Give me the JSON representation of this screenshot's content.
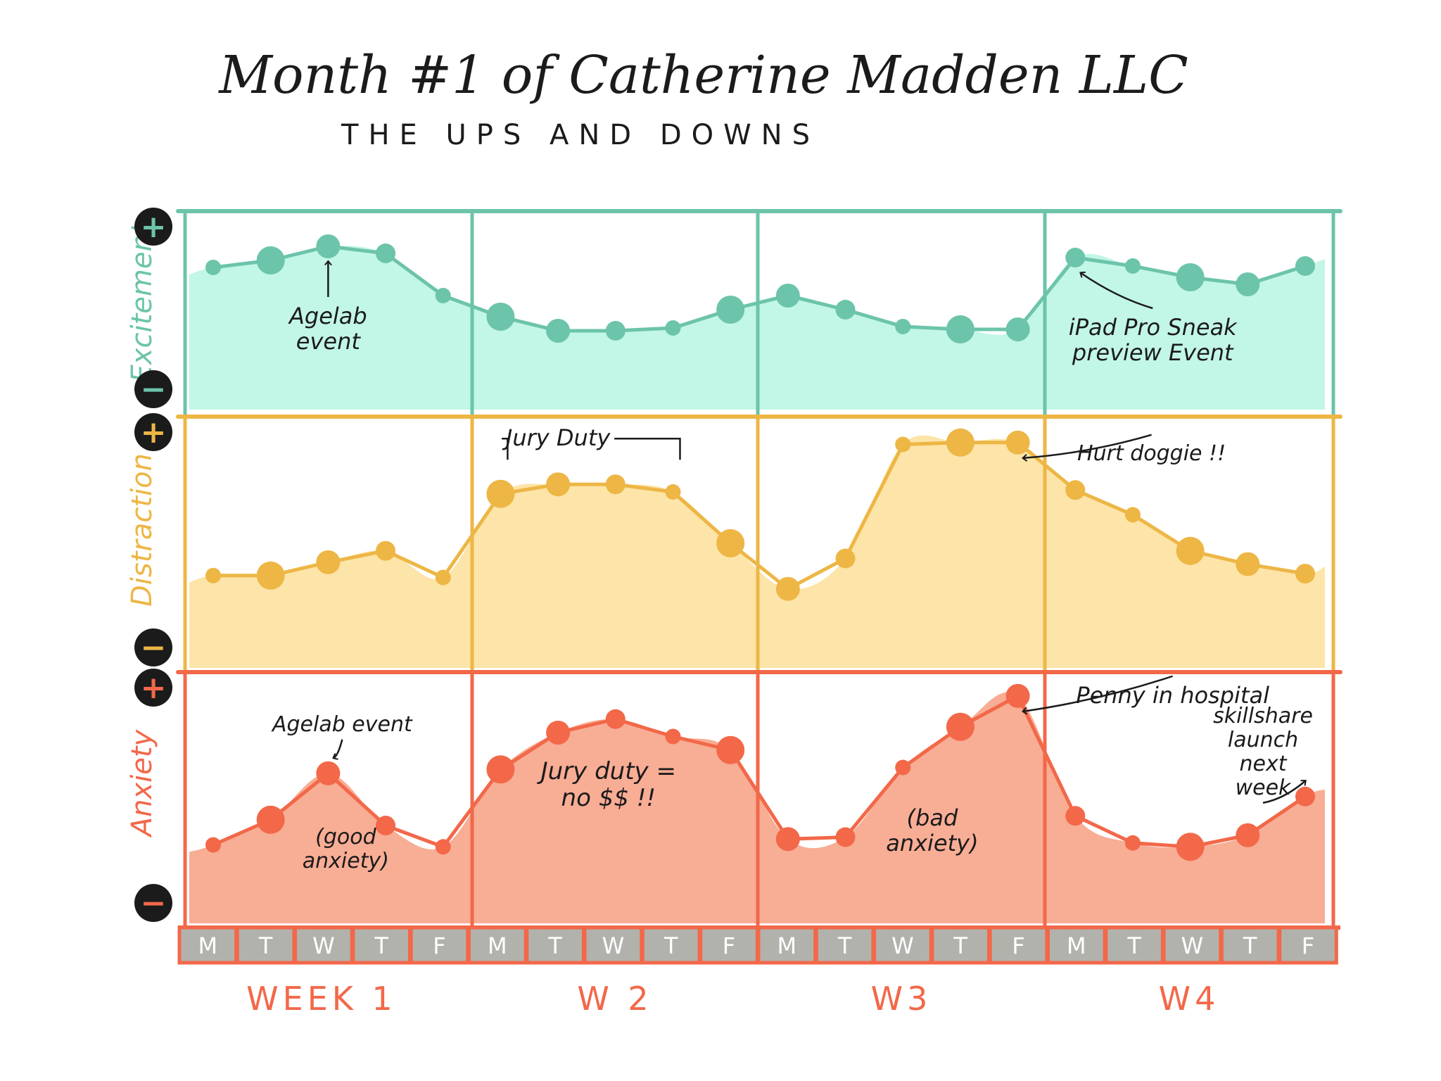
{
  "title": "Month #1 of Catherine Madden LLC",
  "subtitle": "THE UPS AND DOWNS",
  "colors": {
    "excitement": "#6cc4aa",
    "excitement_fill": "#bff5e6",
    "distraction": "#edb645",
    "distraction_fill": "#fde3a3",
    "anxiety": "#f26849",
    "anxiety_fill": "#f8a98f",
    "day_box": "#b2b2ad",
    "marker": "#1b1b1b"
  },
  "plus_symbol": "+",
  "minus_symbol": "−",
  "chart_data": {
    "type": "line",
    "x_days": [
      "M",
      "T",
      "W",
      "T",
      "F",
      "M",
      "T",
      "W",
      "T",
      "F",
      "M",
      "T",
      "W",
      "T",
      "F",
      "M",
      "T",
      "W",
      "T",
      "F"
    ],
    "weeks": [
      "WEEK 1",
      "W 2",
      "W3",
      "W4"
    ],
    "y_scale": "relative level from − (low) to + (high)",
    "ylim": [
      0,
      10
    ],
    "series": [
      {
        "name": "Excitement",
        "values": [
          7.5,
          8,
          9,
          8.5,
          5.5,
          4,
          3,
          3,
          3.2,
          4.5,
          5.5,
          4.5,
          3.3,
          3.1,
          3.1,
          8.2,
          7.6,
          6.8,
          6.3,
          7.6
        ],
        "annotations": [
          {
            "point": 2,
            "text_lines": [
              "Agelab",
              "event"
            ]
          },
          {
            "point": 15,
            "text_lines": [
              "iPad Pro Sneak",
              "preview Event"
            ]
          }
        ]
      },
      {
        "name": "Distraction",
        "values": [
          2.6,
          2.6,
          3.3,
          3.9,
          2.5,
          6.9,
          7.4,
          7.4,
          7,
          4.3,
          1.9,
          3.5,
          9.5,
          9.6,
          9.6,
          7.1,
          5.8,
          3.9,
          3.2,
          2.7
        ],
        "annotations": [
          {
            "point": 6,
            "text_lines": [
              "Jury Duty"
            ]
          },
          {
            "point": 14,
            "text_lines": [
              "Hurt doggie !!"
            ]
          }
        ]
      },
      {
        "name": "Anxiety",
        "values": [
          1.8,
          3.1,
          5.5,
          2.8,
          1.7,
          5.7,
          7.6,
          8.3,
          7.4,
          6.7,
          2.1,
          2.2,
          5.8,
          7.9,
          9.5,
          3.3,
          1.9,
          1.7,
          2.3,
          4.3
        ],
        "annotations": [
          {
            "point": 2,
            "text_lines": [
              "Agelab event"
            ]
          },
          {
            "point": 2,
            "text_lines": [
              "(good",
              "anxiety)"
            ]
          },
          {
            "point": 7,
            "text_lines": [
              "Jury duty =",
              "no $$ !!"
            ]
          },
          {
            "point": 13,
            "text_lines": [
              "(bad",
              "anxiety)"
            ]
          },
          {
            "point": 14,
            "text_lines": [
              "Penny in hospital"
            ]
          },
          {
            "point": 19,
            "text_lines": [
              "skillshare",
              "launch",
              "next",
              "week"
            ]
          }
        ]
      }
    ]
  }
}
